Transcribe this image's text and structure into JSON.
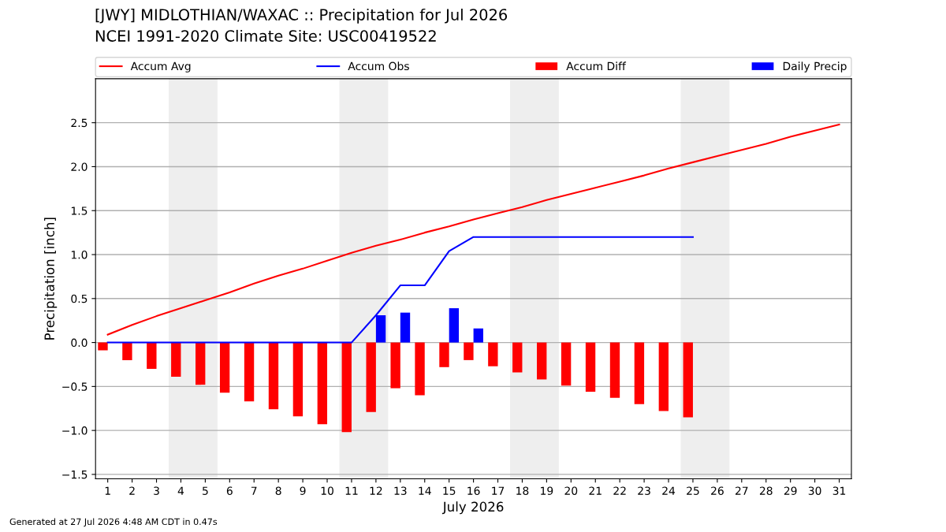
{
  "chart_data": {
    "type": "line",
    "title": "[JWY] MIDLOTHIAN/WAXAC :: Precipitation for Jul 2026",
    "subtitle": "NCEI 1991-2020 Climate Site: USC00419522",
    "xlabel": "July 2026",
    "ylabel": "Precipitation [inch]",
    "x": [
      1,
      2,
      3,
      4,
      5,
      6,
      7,
      8,
      9,
      10,
      11,
      12,
      13,
      14,
      15,
      16,
      17,
      18,
      19,
      20,
      21,
      22,
      23,
      24,
      25,
      26,
      27,
      28,
      29,
      30,
      31
    ],
    "series": [
      {
        "name": "Accum Avg",
        "color": "#ff0000",
        "values": [
          0.09,
          0.2,
          0.3,
          0.39,
          0.48,
          0.57,
          0.67,
          0.76,
          0.84,
          0.93,
          1.02,
          1.1,
          1.17,
          1.25,
          1.32,
          1.4,
          1.47,
          1.54,
          1.62,
          1.69,
          1.76,
          1.83,
          1.9,
          1.98,
          2.05,
          2.12,
          2.19,
          2.26,
          2.34,
          2.41,
          2.48
        ]
      },
      {
        "name": "Accum Obs",
        "color": "#0000ff",
        "x": [
          1,
          2,
          3,
          4,
          5,
          6,
          7,
          8,
          9,
          10,
          11,
          12,
          13,
          14,
          15,
          16,
          17,
          18,
          19,
          20,
          21,
          22,
          23,
          24,
          25
        ],
        "values": [
          0,
          0,
          0,
          0,
          0,
          0,
          0,
          0,
          0,
          0,
          0,
          0.31,
          0.65,
          0.65,
          1.04,
          1.2,
          1.2,
          1.2,
          1.2,
          1.2,
          1.2,
          1.2,
          1.2,
          1.2,
          1.2
        ]
      },
      {
        "name": "Accum Diff",
        "type": "bar",
        "color": "#ff0000",
        "x": [
          1,
          2,
          3,
          4,
          5,
          6,
          7,
          8,
          9,
          10,
          11,
          12,
          13,
          14,
          15,
          16,
          17,
          18,
          19,
          20,
          21,
          22,
          23,
          24,
          25
        ],
        "values": [
          -0.09,
          -0.2,
          -0.3,
          -0.39,
          -0.48,
          -0.57,
          -0.67,
          -0.76,
          -0.84,
          -0.93,
          -1.02,
          -0.79,
          -0.52,
          -0.6,
          -0.28,
          -0.2,
          -0.27,
          -0.34,
          -0.42,
          -0.49,
          -0.56,
          -0.63,
          -0.7,
          -0.78,
          -0.85
        ]
      },
      {
        "name": "Daily Precip",
        "type": "bar",
        "color": "#0000ff",
        "x": [
          12,
          13,
          15,
          16
        ],
        "values": [
          0.31,
          0.34,
          0.39,
          0.16
        ]
      }
    ],
    "bands": [
      {
        "axis": "x",
        "from": 3.5,
        "to": 5.5,
        "color": "#eeeeee"
      },
      {
        "axis": "x",
        "from": 10.5,
        "to": 12.5,
        "color": "#eeeeee"
      },
      {
        "axis": "x",
        "from": 17.5,
        "to": 19.5,
        "color": "#eeeeee"
      },
      {
        "axis": "x",
        "from": 24.5,
        "to": 26.5,
        "color": "#eeeeee"
      }
    ],
    "xlim": [
      0.5,
      31.5
    ],
    "xticks": [
      1,
      2,
      3,
      4,
      5,
      6,
      7,
      8,
      9,
      10,
      11,
      12,
      13,
      14,
      15,
      16,
      17,
      18,
      19,
      20,
      21,
      22,
      23,
      24,
      25,
      26,
      27,
      28,
      29,
      30,
      31
    ],
    "ylim": [
      -1.55,
      3.0
    ],
    "yticks": [
      {
        "value": -1.5,
        "label": "−1.5"
      },
      {
        "value": -1.0,
        "label": "−1.0"
      },
      {
        "value": -0.5,
        "label": "−0.5"
      },
      {
        "value": 0,
        "label": "0.0"
      },
      {
        "value": 0.5,
        "label": "0.5"
      },
      {
        "value": 1.0,
        "label": "1.0"
      },
      {
        "value": 1.5,
        "label": "1.5"
      },
      {
        "value": 2.0,
        "label": "2.0"
      },
      {
        "value": 2.5,
        "label": "2.5"
      }
    ],
    "grid": "y",
    "legend": "top",
    "annotations": [
      "Generated at 27 Jul 2026 4:48 AM CDT in 0.47s"
    ]
  }
}
